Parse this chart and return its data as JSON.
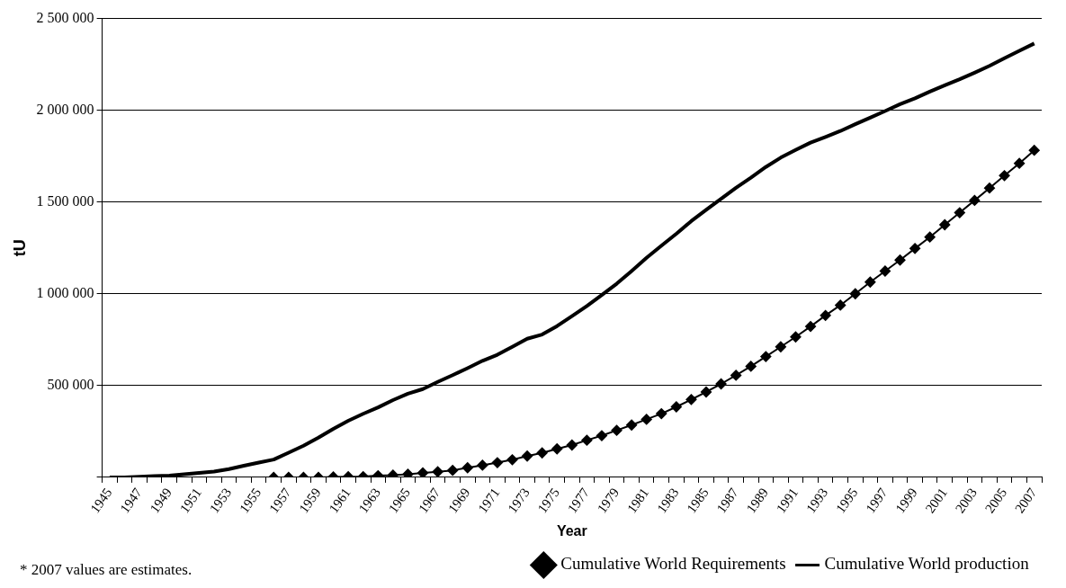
{
  "chart_data": {
    "type": "line",
    "xlabel": "Year",
    "ylabel": "tU",
    "categories": [
      "1945",
      null,
      "1947",
      null,
      "1949",
      null,
      "1951",
      null,
      "1953",
      null,
      "1955",
      null,
      "1957",
      null,
      "1959",
      null,
      "1961",
      null,
      "1963",
      null,
      "1965",
      null,
      "1967",
      null,
      "1969",
      null,
      "1971",
      null,
      "1973",
      null,
      "1975",
      null,
      "1977",
      null,
      "1979",
      null,
      "1981",
      null,
      "1983",
      null,
      "1985",
      null,
      "1987",
      null,
      "1989",
      null,
      "1991",
      null,
      "1993",
      null,
      "1995",
      null,
      "1997",
      null,
      "1999",
      null,
      "2001",
      null,
      "2003",
      null,
      "2005",
      null,
      "2007"
    ],
    "series": [
      {
        "name": "Cumulative World Requirements",
        "color": "#000000",
        "marker": "diamond",
        "values": [
          null,
          null,
          null,
          null,
          null,
          null,
          null,
          null,
          null,
          null,
          null,
          0,
          0,
          0,
          0,
          2000,
          3000,
          4000,
          9000,
          12000,
          17000,
          24000,
          30000,
          38000,
          52000,
          66000,
          80000,
          96000,
          116000,
          133000,
          155000,
          176000,
          202000,
          227000,
          256000,
          285000,
          316000,
          347000,
          384000,
          424000,
          465000,
          509000,
          556000,
          605000,
          658000,
          711000,
          765000,
          822000,
          882000,
          938000,
          1000000,
          1064000,
          1124000,
          1184000,
          1247000,
          1309000,
          1376000,
          1442000,
          1509000,
          1576000,
          1644000,
          1711000,
          1782000
        ]
      },
      {
        "name": "Cumulative World production",
        "color": "#000000",
        "marker": "none",
        "values": [
          0,
          0,
          3000,
          7000,
          9000,
          17000,
          24000,
          31000,
          45000,
          63000,
          80000,
          97000,
          134000,
          172000,
          216000,
          264000,
          308000,
          346000,
          381000,
          421000,
          456000,
          481000,
          520000,
          557000,
          595000,
          635000,
          668000,
          711000,
          755000,
          778000,
          824000,
          878000,
          933000,
          993000,
          1055000,
          1124000,
          1196000,
          1262000,
          1327000,
          1396000,
          1458000,
          1518000,
          1578000,
          1633000,
          1691000,
          1742000,
          1784000,
          1824000,
          1855000,
          1887000,
          1924000,
          1960000,
          1996000,
          2033000,
          2065000,
          2102000,
          2136000,
          2169000,
          2205000,
          2242000,
          2284000,
          2324000,
          2364000
        ]
      }
    ],
    "ylim": [
      0,
      2500000
    ],
    "yticks": [
      {
        "value": 0,
        "label": null
      },
      {
        "value": 500000,
        "label": "500 000"
      },
      {
        "value": 1000000,
        "label": "1 000 000"
      },
      {
        "value": 1500000,
        "label": "1 500 000"
      },
      {
        "value": 2000000,
        "label": "2 000 000"
      },
      {
        "value": 2500000,
        "label": "2 500 000"
      }
    ],
    "grid": "y",
    "legend": "bottom right",
    "line_style": "solid",
    "annotations": [
      "* 2007 values are estimates."
    ]
  }
}
